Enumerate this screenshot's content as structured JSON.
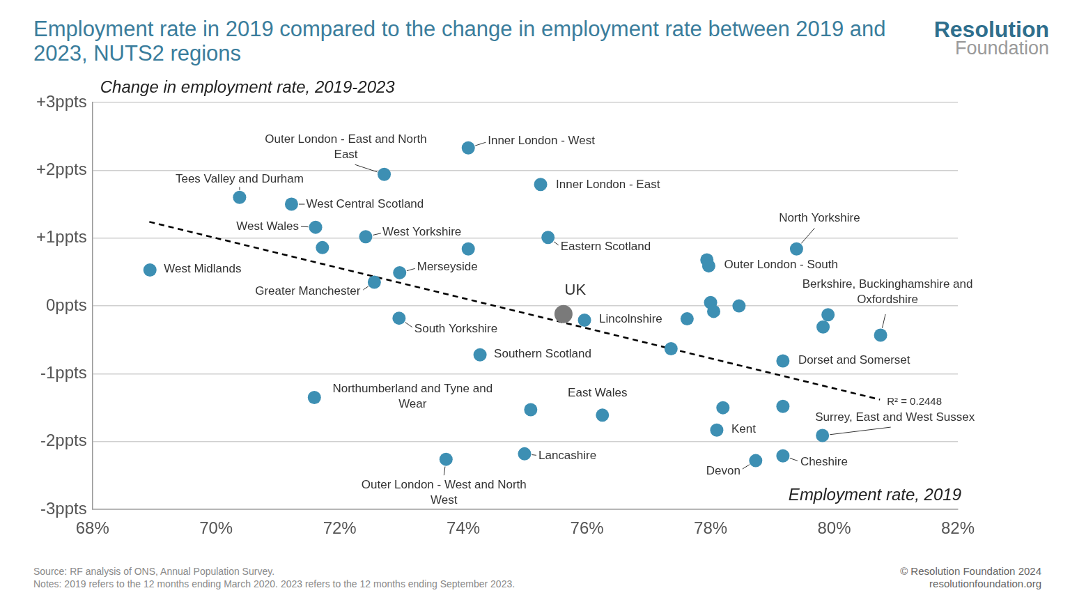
{
  "chart_data": {
    "type": "scatter",
    "title": "Employment rate in 2019 compared to the change in employment rate between 2019 and 2023, NUTS2 regions",
    "y_label": "Change in employment rate, 2019-2023",
    "x_label": "Employment rate, 2019",
    "x": [
      74.08,
      72.72,
      75.25,
      70.38,
      71.22,
      71.61,
      72.42,
      71.72,
      74.08,
      75.37,
      79.39,
      77.94,
      77.97,
      68.93,
      72.97,
      72.56,
      75.62,
      75.96,
      72.96,
      78.0,
      78.05,
      78.46,
      77.62,
      79.9,
      79.82,
      80.75,
      77.36,
      74.27,
      79.17,
      71.59,
      75.09,
      76.25,
      78.2,
      79.17,
      78.1,
      79.81,
      73.72,
      74.99,
      78.73,
      79.17
    ],
    "values": [
      2.33,
      1.94,
      1.79,
      1.6,
      1.5,
      1.16,
      1.02,
      0.86,
      0.84,
      1.01,
      0.84,
      0.68,
      0.59,
      0.53,
      0.49,
      0.35,
      -0.12,
      -0.21,
      -0.18,
      0.05,
      -0.08,
      0.0,
      -0.19,
      -0.13,
      -0.31,
      -0.43,
      -0.63,
      -0.72,
      -0.81,
      -1.35,
      -1.53,
      -1.61,
      -1.5,
      -1.48,
      -1.83,
      -1.91,
      -2.26,
      -2.18,
      -2.28,
      -2.21
    ],
    "labels": [
      "Inner London - West",
      "Outer London - East and North East",
      "Inner London - East",
      "Tees Valley and Durham",
      "West Central Scotland",
      "West Wales",
      "West Yorkshire",
      null,
      null,
      "Eastern Scotland",
      "North Yorkshire",
      null,
      "Outer London - South",
      "West Midlands",
      "Merseyside",
      "Greater Manchester",
      "UK",
      "Lincolnshire",
      "South Yorkshire",
      null,
      null,
      null,
      null,
      null,
      null,
      "Berkshire, Buckinghamshire and Oxfordshire",
      null,
      "Southern Scotland",
      "Dorset and Somerset",
      "Northumberland and Tyne and Wear",
      null,
      "East Wales",
      null,
      null,
      "Kent",
      "Surrey, East and West Sussex",
      "Outer London - West and North West",
      "Lancashire",
      "Devon",
      "Cheshire"
    ],
    "colors": [
      "#3d8fb3",
      "#3d8fb3",
      "#3d8fb3",
      "#3d8fb3",
      "#3d8fb3",
      "#3d8fb3",
      "#3d8fb3",
      "#3d8fb3",
      "#3d8fb3",
      "#3d8fb3",
      "#3d8fb3",
      "#3d8fb3",
      "#3d8fb3",
      "#3d8fb3",
      "#3d8fb3",
      "#3d8fb3",
      "#7a7a7a",
      "#3d8fb3",
      "#3d8fb3",
      "#3d8fb3",
      "#3d8fb3",
      "#3d8fb3",
      "#3d8fb3",
      "#3d8fb3",
      "#3d8fb3",
      "#3d8fb3",
      "#3d8fb3",
      "#3d8fb3",
      "#3d8fb3",
      "#3d8fb3",
      "#3d8fb3",
      "#3d8fb3",
      "#3d8fb3",
      "#3d8fb3",
      "#3d8fb3",
      "#3d8fb3",
      "#3d8fb3",
      "#3d8fb3",
      "#3d8fb3",
      "#3d8fb3"
    ],
    "xlim": [
      68,
      82
    ],
    "xticks": [
      {
        "value": 68,
        "label": "68%"
      },
      {
        "value": 70,
        "label": "70%"
      },
      {
        "value": 72,
        "label": "72%"
      },
      {
        "value": 74,
        "label": "74%"
      },
      {
        "value": 76,
        "label": "76%"
      },
      {
        "value": 78,
        "label": "78%"
      },
      {
        "value": 80,
        "label": "80%"
      },
      {
        "value": 82,
        "label": "82%"
      }
    ],
    "ylim": [
      -3,
      3
    ],
    "yticks": [
      {
        "value": -3,
        "label": "-3ppts"
      },
      {
        "value": -2,
        "label": "-2ppts"
      },
      {
        "value": -1,
        "label": "-1ppts"
      },
      {
        "value": 0,
        "label": "0ppts"
      },
      {
        "value": 1,
        "label": "+1ppts"
      },
      {
        "value": 2,
        "label": "+2ppts"
      },
      {
        "value": 3,
        "label": "+3ppts"
      }
    ],
    "grid": "y",
    "trendline": {
      "x": [
        68.92,
        80.74
      ],
      "values": [
        1.24,
        -1.38
      ],
      "label": "R² = 0.2448",
      "color": "#000000",
      "line_style": "dashed"
    }
  },
  "page": {
    "logo": [
      "Resolution",
      "Foundation"
    ],
    "source": "Source: RF analysis of ONS, Annual Population Survey.",
    "notes": "Notes: 2019 refers to the 12 months ending March 2020. 2023 refers to the 12 months ending September 2023.",
    "copyright": "© Resolution Foundation 2024",
    "url": "resolutionfoundation.org"
  }
}
